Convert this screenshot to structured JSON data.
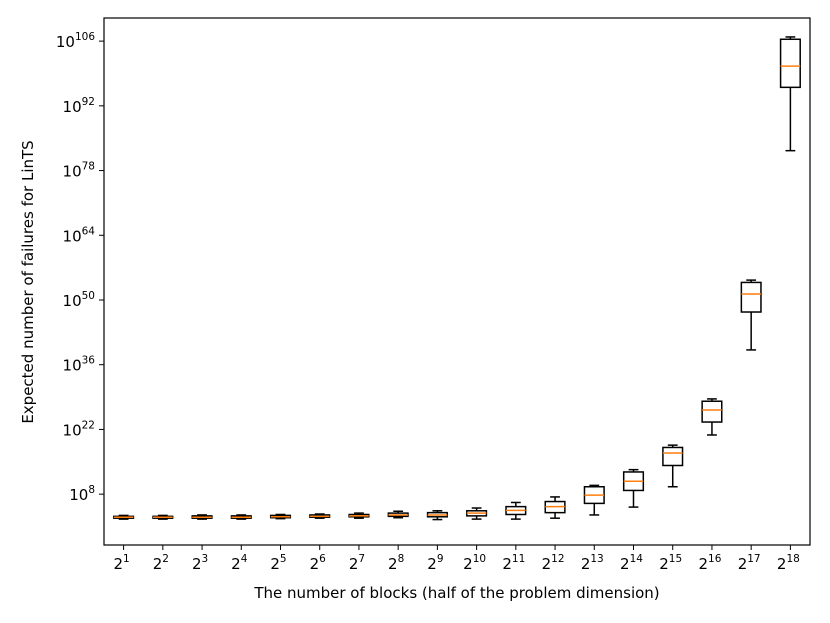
{
  "chart_data": {
    "type": "box",
    "xlabel": "The number of blocks (half of the problem dimension)",
    "ylabel": "Expected number of failures for LinTS",
    "yscale": "log",
    "ylim_log10": [
      -3,
      111
    ],
    "categories": [
      {
        "base": "2",
        "exp": "1"
      },
      {
        "base": "2",
        "exp": "2"
      },
      {
        "base": "2",
        "exp": "3"
      },
      {
        "base": "2",
        "exp": "4"
      },
      {
        "base": "2",
        "exp": "5"
      },
      {
        "base": "2",
        "exp": "6"
      },
      {
        "base": "2",
        "exp": "7"
      },
      {
        "base": "2",
        "exp": "8"
      },
      {
        "base": "2",
        "exp": "9"
      },
      {
        "base": "2",
        "exp": "10"
      },
      {
        "base": "2",
        "exp": "11"
      },
      {
        "base": "2",
        "exp": "12"
      },
      {
        "base": "2",
        "exp": "13"
      },
      {
        "base": "2",
        "exp": "14"
      },
      {
        "base": "2",
        "exp": "15"
      },
      {
        "base": "2",
        "exp": "16"
      },
      {
        "base": "2",
        "exp": "17"
      },
      {
        "base": "2",
        "exp": "18"
      }
    ],
    "y_ticks": [
      {
        "base": "10",
        "exp": "8",
        "log10": 8
      },
      {
        "base": "10",
        "exp": "22",
        "log10": 22
      },
      {
        "base": "10",
        "exp": "36",
        "log10": 36
      },
      {
        "base": "10",
        "exp": "50",
        "log10": 50
      },
      {
        "base": "10",
        "exp": "64",
        "log10": 64
      },
      {
        "base": "10",
        "exp": "78",
        "log10": 78
      },
      {
        "base": "10",
        "exp": "92",
        "log10": 92
      },
      {
        "base": "10",
        "exp": "106",
        "log10": 106
      }
    ],
    "boxes_log10": [
      {
        "whisker_low": 2.6,
        "q1": 2.8,
        "median": 3.0,
        "q3": 3.2,
        "whisker_high": 3.4
      },
      {
        "whisker_low": 2.6,
        "q1": 2.8,
        "median": 3.0,
        "q3": 3.2,
        "whisker_high": 3.4
      },
      {
        "whisker_low": 2.6,
        "q1": 2.8,
        "median": 3.0,
        "q3": 3.3,
        "whisker_high": 3.5
      },
      {
        "whisker_low": 2.6,
        "q1": 2.8,
        "median": 3.0,
        "q3": 3.3,
        "whisker_high": 3.5
      },
      {
        "whisker_low": 2.7,
        "q1": 2.9,
        "median": 3.1,
        "q3": 3.4,
        "whisker_high": 3.6
      },
      {
        "whisker_low": 2.8,
        "q1": 3.0,
        "median": 3.2,
        "q3": 3.5,
        "whisker_high": 3.7
      },
      {
        "whisker_low": 2.8,
        "q1": 3.1,
        "median": 3.3,
        "q3": 3.6,
        "whisker_high": 3.9
      },
      {
        "whisker_low": 2.9,
        "q1": 3.2,
        "median": 3.5,
        "q3": 3.9,
        "whisker_high": 4.3
      },
      {
        "whisker_low": 2.5,
        "q1": 3.1,
        "median": 3.5,
        "q3": 4.0,
        "whisker_high": 4.4
      },
      {
        "whisker_low": 2.6,
        "q1": 3.3,
        "median": 3.9,
        "q3": 4.4,
        "whisker_high": 5.0
      },
      {
        "whisker_low": 2.6,
        "q1": 3.6,
        "median": 4.5,
        "q3": 5.3,
        "whisker_high": 6.2
      },
      {
        "whisker_low": 2.8,
        "q1": 4.0,
        "median": 5.3,
        "q3": 6.4,
        "whisker_high": 7.4
      },
      {
        "whisker_low": 3.5,
        "q1": 6.0,
        "median": 7.8,
        "q3": 9.6,
        "whisker_high": 9.9
      },
      {
        "whisker_low": 5.2,
        "q1": 8.8,
        "median": 10.8,
        "q3": 12.8,
        "whisker_high": 13.3
      },
      {
        "whisker_low": 9.6,
        "q1": 14.2,
        "median": 16.9,
        "q3": 18.1,
        "whisker_high": 18.6
      },
      {
        "whisker_low": 20.8,
        "q1": 23.6,
        "median": 26.2,
        "q3": 28.1,
        "whisker_high": 28.6
      },
      {
        "whisker_low": 39.2,
        "q1": 47.4,
        "median": 51.3,
        "q3": 53.8,
        "whisker_high": 54.3
      },
      {
        "whisker_low": 82.3,
        "q1": 96.0,
        "median": 100.6,
        "q3": 106.4,
        "whisker_high": 106.9
      }
    ],
    "colors": {
      "box": "#000000",
      "median": "#ff7f0e",
      "axes": "#000000",
      "background": "#ffffff"
    },
    "grid": false,
    "legend": "none"
  }
}
